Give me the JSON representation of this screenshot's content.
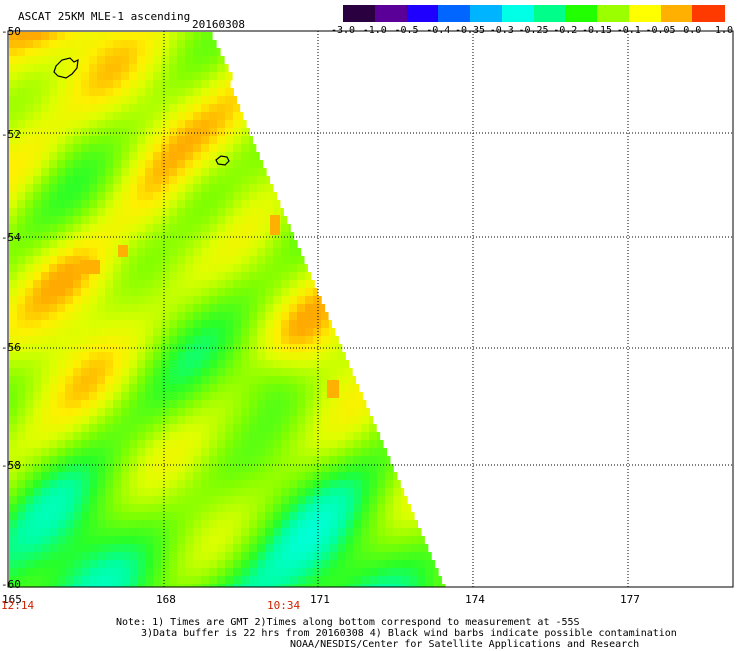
{
  "header": {
    "title": "ASCAT 25KM MLE-1 ascending",
    "date": "20160308"
  },
  "colorbar": {
    "labels": [
      "-3.0",
      "-1.0",
      "-0.5",
      "-0.4",
      "-0.35",
      "-0.3",
      "-0.25",
      "-0.2",
      "-0.15",
      "-0.1",
      "-0.05",
      "0.0",
      "1.0"
    ],
    "colors": [
      "#2a0040",
      "#5a0099",
      "#1f00ff",
      "#0066ff",
      "#00b4ff",
      "#00ffe6",
      "#00ff8a",
      "#22ff00",
      "#9cff00",
      "#ffff00",
      "#ffb000",
      "#ff3a00"
    ]
  },
  "map": {
    "lon_labels": [
      "165",
      "168",
      "171",
      "174",
      "177"
    ],
    "lat_labels": [
      "-50",
      "-52",
      "-54",
      "-56",
      "-58",
      "-60"
    ],
    "times": [
      "12:14",
      "10:34"
    ]
  },
  "footer": {
    "note1": "Note: 1) Times are GMT 2)Times along bottom correspond to measurement at -55S",
    "note2": "3)Data buffer is 22 hrs from 20160308 4) Black wind barbs indicate possible contamination",
    "note3": "NOAA/NESDIS/Center for Satellite Applications and Research"
  },
  "style": {
    "time_color": "#cc2200",
    "swath_base_color": "#33ff33"
  }
}
